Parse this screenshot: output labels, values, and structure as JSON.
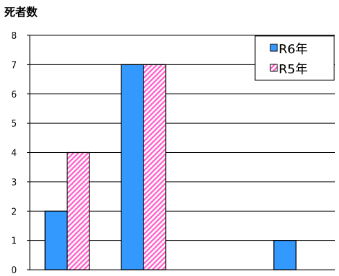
{
  "chart_data": {
    "type": "bar",
    "title": "",
    "xlabel": "",
    "ylabel": "死者数",
    "ylim": [
      0,
      8
    ],
    "yticks": [
      "0",
      "1",
      "2",
      "3",
      "4",
      "5",
      "6",
      "7",
      "8"
    ],
    "categories": [
      "",
      "",
      "",
      ""
    ],
    "series": [
      {
        "name": "R6年",
        "values": [
          2,
          7,
          0,
          1
        ],
        "color": "#3399ff",
        "pattern": "solid"
      },
      {
        "name": "R5年",
        "values": [
          4,
          7,
          0,
          0
        ],
        "color": "#ff66cc",
        "pattern": "diagonal-hatch"
      }
    ],
    "grid": "horizontal",
    "legend_position": "top-right"
  }
}
